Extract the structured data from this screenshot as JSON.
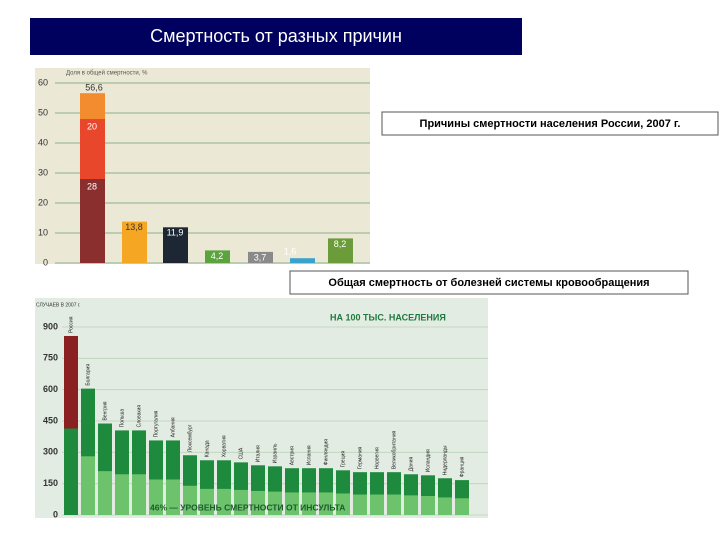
{
  "header": {
    "title": "Смертность от разных причин"
  },
  "chart_data": [
    {
      "type": "stacked-bar-mix",
      "label": "Причины смертности населения России, 2007 г.",
      "axis_label": "Доля в общей смертности, %",
      "ylim": [
        0,
        60
      ],
      "yticks": [
        0,
        10,
        20,
        30,
        40,
        50,
        60
      ],
      "grid": true,
      "stack": [
        {
          "value": 28,
          "label": "28",
          "color": "#8b2e2e"
        },
        {
          "value": 20,
          "label": "20",
          "color": "#e8472c"
        },
        {
          "value": 8.6,
          "color": "#f28c2e"
        }
      ],
      "stack_total": 56.6,
      "stack_total_label": "56,6",
      "values": [
        13.8,
        11.9,
        4.2,
        3.7,
        1.6,
        8.2
      ],
      "value_labels": [
        "13,8",
        "11,9",
        "4,2",
        "3,7",
        "1,6",
        "8,2"
      ],
      "colors": [
        "#f5a623",
        "#1c2733",
        "#5ba33c",
        "#8a8a8a",
        "#3aa3cc",
        "#6c9c3a"
      ]
    },
    {
      "type": "overlap-bar",
      "label": "Общая смертность от болезней системы кровообращения",
      "axis_label": "СЛУЧАЕВ В 2007 г.",
      "unit_note": "НА 100 ТЫС. НАСЕЛЕНИЯ",
      "annotation": "46% — УРОВЕНЬ СМЕРТНОСТИ ОТ ИНСУЛЬТА",
      "ylim": [
        0,
        900
      ],
      "yticks": [
        0,
        150,
        300,
        450,
        600,
        750,
        900
      ],
      "grid": true,
      "categories": [
        "Россия",
        "Болгария",
        "Венгрия",
        "Польша",
        "Словакия",
        "Португалия",
        "Албания",
        "Люксембург",
        "Канада",
        "Хорватия",
        "США",
        "Италия",
        "Израиль",
        "Австрия",
        "Испания",
        "Финляндия",
        "Греция",
        "Германия",
        "Норвегия",
        "Великобритания",
        "Дания",
        "Исландия",
        "Нидерланды",
        "Франция"
      ],
      "values": [
        857,
        605,
        438,
        405,
        405,
        357,
        357,
        286,
        262,
        262,
        252,
        238,
        233,
        224,
        224,
        224,
        214,
        205,
        205,
        205,
        195,
        190,
        176,
        167
      ],
      "inner_values": [
        414,
        281,
        210,
        195,
        195,
        170,
        170,
        140,
        125,
        125,
        120,
        115,
        112,
        108,
        108,
        108,
        103,
        98,
        98,
        98,
        94,
        91,
        84,
        80
      ],
      "highlight_color": "#8b2020",
      "color": "#1e8a3e",
      "inner_color": "#6cc36c"
    }
  ]
}
